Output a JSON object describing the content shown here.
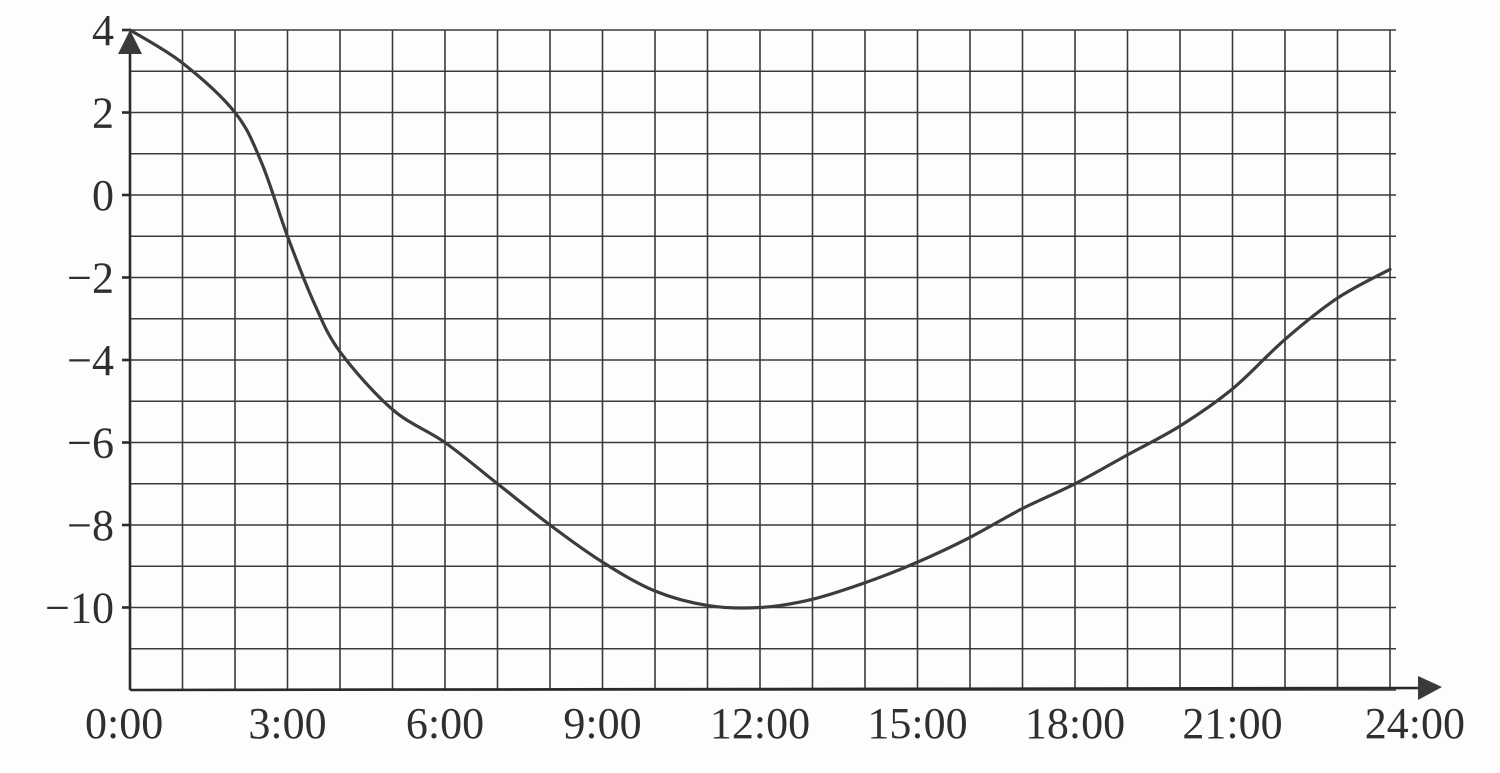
{
  "chart_data": {
    "type": "line",
    "title": "",
    "xlabel": "",
    "ylabel": "",
    "xlim": [
      0,
      24
    ],
    "ylim": [
      -12,
      4
    ],
    "grid": true,
    "x_tick_labels": [
      "0:00",
      "3:00",
      "6:00",
      "9:00",
      "12:00",
      "15:00",
      "18:00",
      "21:00",
      "24:00"
    ],
    "x_tick_values": [
      0,
      3,
      6,
      9,
      12,
      15,
      18,
      21,
      24
    ],
    "y_tick_labels": [
      "4",
      "2",
      "0",
      "−2",
      "−4",
      "−6",
      "−8",
      "−10"
    ],
    "y_tick_values": [
      4,
      2,
      0,
      -2,
      -4,
      -6,
      -8,
      -10
    ],
    "series": [
      {
        "x": [
          0,
          1,
          2,
          2.5,
          3,
          3.5,
          4,
          5,
          6,
          7,
          8,
          9,
          10,
          11,
          12,
          13,
          14,
          15,
          16,
          17,
          18,
          19,
          20,
          21,
          22,
          23,
          24
        ],
        "y": [
          4,
          3.2,
          2,
          0.8,
          -1,
          -2.6,
          -3.8,
          -5.2,
          -6,
          -7,
          -8,
          -8.9,
          -9.6,
          -9.95,
          -10,
          -9.8,
          -9.4,
          -8.9,
          -8.3,
          -7.6,
          -7,
          -6.3,
          -5.6,
          -4.7,
          -3.5,
          -2.5,
          -1.8
        ]
      }
    ]
  }
}
